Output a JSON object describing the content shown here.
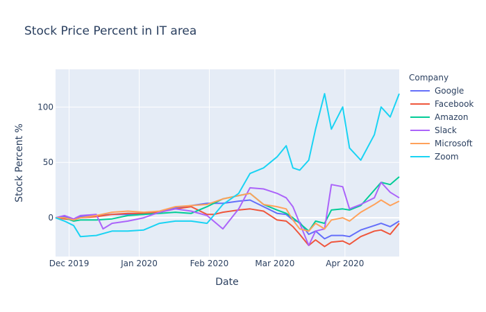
{
  "chart_data": {
    "type": "line",
    "title": "Stock Price Percent in IT area",
    "xlabel": "Date",
    "ylabel": "Stock Percent %",
    "x_range": [
      "2019-11-25",
      "2020-04-25"
    ],
    "ylim": [
      -35,
      134
    ],
    "x_ticks": [
      {
        "date": "2019-12-01",
        "label": "Dec 2019"
      },
      {
        "date": "2020-01-01",
        "label": "Jan 2020"
      },
      {
        "date": "2020-02-01",
        "label": "Feb 2020"
      },
      {
        "date": "2020-03-01",
        "label": "Mar 2020"
      },
      {
        "date": "2020-04-01",
        "label": "Apr 2020"
      }
    ],
    "y_ticks": [
      0,
      50,
      100
    ],
    "grid": true,
    "legend": {
      "title": "Company",
      "position": "right"
    },
    "series": [
      {
        "name": "Google",
        "color": "#636efa",
        "points": [
          [
            "2019-11-25",
            0
          ],
          [
            "2019-11-29",
            1
          ],
          [
            "2019-12-03",
            -2
          ],
          [
            "2019-12-06",
            1
          ],
          [
            "2019-12-13",
            2
          ],
          [
            "2019-12-20",
            3
          ],
          [
            "2019-12-27",
            3
          ],
          [
            "2020-01-03",
            3
          ],
          [
            "2020-01-10",
            5
          ],
          [
            "2020-01-17",
            9
          ],
          [
            "2020-01-24",
            11
          ],
          [
            "2020-01-31",
            13
          ],
          [
            "2020-02-07",
            13
          ],
          [
            "2020-02-14",
            15
          ],
          [
            "2020-02-19",
            16
          ],
          [
            "2020-02-25",
            10
          ],
          [
            "2020-03-02",
            4
          ],
          [
            "2020-03-06",
            3
          ],
          [
            "2020-03-09",
            -2
          ],
          [
            "2020-03-12",
            -4
          ],
          [
            "2020-03-16",
            -15
          ],
          [
            "2020-03-19",
            -12
          ],
          [
            "2020-03-23",
            -19
          ],
          [
            "2020-03-26",
            -16
          ],
          [
            "2020-03-31",
            -16
          ],
          [
            "2020-04-03",
            -17
          ],
          [
            "2020-04-08",
            -11
          ],
          [
            "2020-04-14",
            -7
          ],
          [
            "2020-04-17",
            -5
          ],
          [
            "2020-04-21",
            -8
          ],
          [
            "2020-04-25",
            -3
          ]
        ]
      },
      {
        "name": "Facebook",
        "color": "#ef553b",
        "points": [
          [
            "2019-11-25",
            0
          ],
          [
            "2019-11-29",
            -1
          ],
          [
            "2019-12-03",
            -2
          ],
          [
            "2019-12-06",
            0
          ],
          [
            "2019-12-13",
            1
          ],
          [
            "2019-12-20",
            3
          ],
          [
            "2019-12-27",
            4
          ],
          [
            "2020-01-03",
            4
          ],
          [
            "2020-01-10",
            5
          ],
          [
            "2020-01-17",
            8
          ],
          [
            "2020-01-24",
            10
          ],
          [
            "2020-01-31",
            3
          ],
          [
            "2020-02-03",
            3
          ],
          [
            "2020-02-07",
            5
          ],
          [
            "2020-02-14",
            7
          ],
          [
            "2020-02-19",
            8
          ],
          [
            "2020-02-25",
            6
          ],
          [
            "2020-03-02",
            -2
          ],
          [
            "2020-03-06",
            -3
          ],
          [
            "2020-03-09",
            -8
          ],
          [
            "2020-03-12",
            -15
          ],
          [
            "2020-03-16",
            -25
          ],
          [
            "2020-03-19",
            -20
          ],
          [
            "2020-03-23",
            -26
          ],
          [
            "2020-03-26",
            -22
          ],
          [
            "2020-03-31",
            -21
          ],
          [
            "2020-04-03",
            -24
          ],
          [
            "2020-04-08",
            -17
          ],
          [
            "2020-04-14",
            -12
          ],
          [
            "2020-04-17",
            -11
          ],
          [
            "2020-04-21",
            -15
          ],
          [
            "2020-04-25",
            -5
          ]
        ]
      },
      {
        "name": "Amazon",
        "color": "#00cc96",
        "points": [
          [
            "2019-11-25",
            0
          ],
          [
            "2019-11-29",
            0
          ],
          [
            "2019-12-03",
            -3
          ],
          [
            "2019-12-06",
            -2
          ],
          [
            "2019-12-13",
            -2
          ],
          [
            "2019-12-20",
            -1
          ],
          [
            "2019-12-27",
            2
          ],
          [
            "2020-01-03",
            3
          ],
          [
            "2020-01-10",
            4
          ],
          [
            "2020-01-17",
            5
          ],
          [
            "2020-01-24",
            4
          ],
          [
            "2020-01-31",
            10
          ],
          [
            "2020-02-07",
            17
          ],
          [
            "2020-02-14",
            20
          ],
          [
            "2020-02-19",
            22
          ],
          [
            "2020-02-25",
            12
          ],
          [
            "2020-03-02",
            7
          ],
          [
            "2020-03-06",
            4
          ],
          [
            "2020-03-09",
            0
          ],
          [
            "2020-03-12",
            -5
          ],
          [
            "2020-03-16",
            -12
          ],
          [
            "2020-03-19",
            -3
          ],
          [
            "2020-03-23",
            -5
          ],
          [
            "2020-03-26",
            7
          ],
          [
            "2020-03-31",
            8
          ],
          [
            "2020-04-03",
            7
          ],
          [
            "2020-04-08",
            11
          ],
          [
            "2020-04-14",
            25
          ],
          [
            "2020-04-17",
            32
          ],
          [
            "2020-04-21",
            30
          ],
          [
            "2020-04-25",
            37
          ]
        ]
      },
      {
        "name": "Slack",
        "color": "#ab63fa",
        "points": [
          [
            "2019-11-25",
            0
          ],
          [
            "2019-11-29",
            2
          ],
          [
            "2019-12-03",
            -1
          ],
          [
            "2019-12-06",
            2
          ],
          [
            "2019-12-13",
            3
          ],
          [
            "2019-12-16",
            -10
          ],
          [
            "2019-12-20",
            -5
          ],
          [
            "2019-12-27",
            -3
          ],
          [
            "2020-01-03",
            0
          ],
          [
            "2020-01-10",
            5
          ],
          [
            "2020-01-17",
            8
          ],
          [
            "2020-01-24",
            6
          ],
          [
            "2020-01-31",
            2
          ],
          [
            "2020-02-07",
            -10
          ],
          [
            "2020-02-14",
            8
          ],
          [
            "2020-02-19",
            27
          ],
          [
            "2020-02-25",
            26
          ],
          [
            "2020-03-02",
            22
          ],
          [
            "2020-03-06",
            18
          ],
          [
            "2020-03-09",
            10
          ],
          [
            "2020-03-12",
            -5
          ],
          [
            "2020-03-16",
            -25
          ],
          [
            "2020-03-19",
            -12
          ],
          [
            "2020-03-23",
            -10
          ],
          [
            "2020-03-26",
            30
          ],
          [
            "2020-03-31",
            28
          ],
          [
            "2020-04-03",
            8
          ],
          [
            "2020-04-08",
            12
          ],
          [
            "2020-04-14",
            18
          ],
          [
            "2020-04-17",
            32
          ],
          [
            "2020-04-21",
            23
          ],
          [
            "2020-04-25",
            18
          ]
        ]
      },
      {
        "name": "Microsoft",
        "color": "#ffa15a",
        "points": [
          [
            "2019-11-25",
            0
          ],
          [
            "2019-11-29",
            0
          ],
          [
            "2019-12-03",
            -2
          ],
          [
            "2019-12-06",
            0
          ],
          [
            "2019-12-13",
            2
          ],
          [
            "2019-12-20",
            5
          ],
          [
            "2019-12-27",
            6
          ],
          [
            "2020-01-03",
            5
          ],
          [
            "2020-01-10",
            6
          ],
          [
            "2020-01-17",
            10
          ],
          [
            "2020-01-24",
            11
          ],
          [
            "2020-01-31",
            12
          ],
          [
            "2020-02-07",
            17
          ],
          [
            "2020-02-14",
            20
          ],
          [
            "2020-02-19",
            22
          ],
          [
            "2020-02-25",
            12
          ],
          [
            "2020-03-02",
            10
          ],
          [
            "2020-03-06",
            8
          ],
          [
            "2020-03-09",
            -2
          ],
          [
            "2020-03-12",
            -10
          ],
          [
            "2020-03-16",
            -12
          ],
          [
            "2020-03-19",
            -5
          ],
          [
            "2020-03-23",
            -10
          ],
          [
            "2020-03-26",
            -2
          ],
          [
            "2020-03-31",
            0
          ],
          [
            "2020-04-03",
            -3
          ],
          [
            "2020-04-08",
            5
          ],
          [
            "2020-04-14",
            12
          ],
          [
            "2020-04-17",
            16
          ],
          [
            "2020-04-21",
            11
          ],
          [
            "2020-04-25",
            15
          ]
        ]
      },
      {
        "name": "Zoom",
        "color": "#19d3f3",
        "points": [
          [
            "2019-11-25",
            0
          ],
          [
            "2019-11-29",
            -3
          ],
          [
            "2019-12-03",
            -7
          ],
          [
            "2019-12-06",
            -17
          ],
          [
            "2019-12-13",
            -16
          ],
          [
            "2019-12-20",
            -12
          ],
          [
            "2019-12-27",
            -12
          ],
          [
            "2020-01-03",
            -11
          ],
          [
            "2020-01-10",
            -5
          ],
          [
            "2020-01-17",
            -3
          ],
          [
            "2020-01-24",
            -3
          ],
          [
            "2020-01-31",
            -5
          ],
          [
            "2020-02-07",
            12
          ],
          [
            "2020-02-14",
            22
          ],
          [
            "2020-02-19",
            40
          ],
          [
            "2020-02-25",
            45
          ],
          [
            "2020-03-02",
            55
          ],
          [
            "2020-03-06",
            65
          ],
          [
            "2020-03-09",
            45
          ],
          [
            "2020-03-12",
            43
          ],
          [
            "2020-03-16",
            52
          ],
          [
            "2020-03-19",
            80
          ],
          [
            "2020-03-23",
            112
          ],
          [
            "2020-03-26",
            80
          ],
          [
            "2020-03-31",
            100
          ],
          [
            "2020-04-03",
            63
          ],
          [
            "2020-04-08",
            52
          ],
          [
            "2020-04-14",
            75
          ],
          [
            "2020-04-17",
            100
          ],
          [
            "2020-04-21",
            91
          ],
          [
            "2020-04-25",
            112
          ]
        ]
      }
    ]
  }
}
